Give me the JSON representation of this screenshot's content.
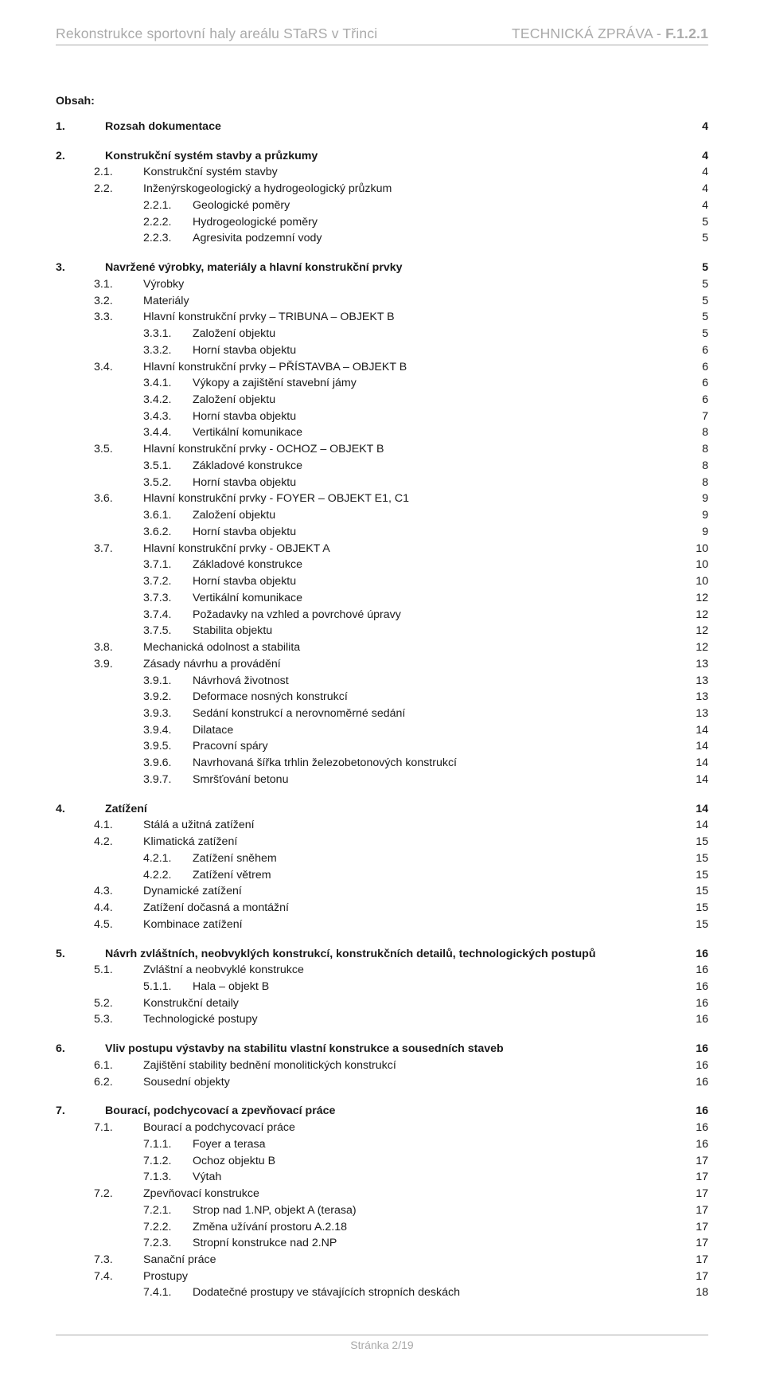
{
  "header": {
    "left": "Rekonstrukce sportovní haly areálu STaRS v Třinci",
    "right_label": "TECHNICKÁ ZPRÁVA - ",
    "right_code": "F.1.2.1"
  },
  "obsah_label": "Obsah:",
  "footer": "Stránka 2/19",
  "colors": {
    "header_text": "#aaaaaa",
    "body_text": "#1a1a1a",
    "rule": "#aaaaaa",
    "background": "#ffffff"
  },
  "toc": [
    {
      "lvl": 1,
      "num": "1.",
      "text": "Rozsah dokumentace",
      "page": "4"
    },
    {
      "lvl": 1,
      "num": "2.",
      "text": "Konstrukční systém stavby a průzkumy",
      "page": "4"
    },
    {
      "lvl": 2,
      "num": "2.1.",
      "text": "Konstrukční systém stavby",
      "page": "4"
    },
    {
      "lvl": 2,
      "num": "2.2.",
      "text": "Inženýrskogeologický a hydrogeologický průzkum",
      "page": "4"
    },
    {
      "lvl": 3,
      "num": "2.2.1.",
      "text": "Geologické poměry",
      "page": "4"
    },
    {
      "lvl": 3,
      "num": "2.2.2.",
      "text": "Hydrogeologické poměry",
      "page": "5"
    },
    {
      "lvl": 3,
      "num": "2.2.3.",
      "text": "Agresivita podzemní vody",
      "page": "5"
    },
    {
      "lvl": 1,
      "num": "3.",
      "text": "Navržené výrobky, materiály a hlavní konstrukční prvky",
      "page": "5"
    },
    {
      "lvl": 2,
      "num": "3.1.",
      "text": "Výrobky",
      "page": "5"
    },
    {
      "lvl": 2,
      "num": "3.2.",
      "text": "Materiály",
      "page": "5"
    },
    {
      "lvl": 2,
      "num": "3.3.",
      "text": "Hlavní konstrukční prvky – TRIBUNA – OBJEKT B",
      "page": "5"
    },
    {
      "lvl": 3,
      "num": "3.3.1.",
      "text": "Založení objektu",
      "page": "5"
    },
    {
      "lvl": 3,
      "num": "3.3.2.",
      "text": "Horní stavba objektu",
      "page": "6"
    },
    {
      "lvl": 2,
      "num": "3.4.",
      "text": "Hlavní konstrukční prvky –  PŘÍSTAVBA –  OBJEKT B",
      "page": "6"
    },
    {
      "lvl": 3,
      "num": "3.4.1.",
      "text": "Výkopy a zajištění stavební jámy",
      "page": "6"
    },
    {
      "lvl": 3,
      "num": "3.4.2.",
      "text": "Založení objektu",
      "page": "6"
    },
    {
      "lvl": 3,
      "num": "3.4.3.",
      "text": "Horní stavba objektu",
      "page": "7"
    },
    {
      "lvl": 3,
      "num": "3.4.4.",
      "text": "Vertikální komunikace",
      "page": "8"
    },
    {
      "lvl": 2,
      "num": "3.5.",
      "text": "Hlavní konstrukční prvky - OCHOZ –  OBJEKT B",
      "page": "8"
    },
    {
      "lvl": 3,
      "num": "3.5.1.",
      "text": "Základové konstrukce",
      "page": "8"
    },
    {
      "lvl": 3,
      "num": "3.5.2.",
      "text": "Horní stavba objektu",
      "page": "8"
    },
    {
      "lvl": 2,
      "num": "3.6.",
      "text": "Hlavní konstrukční prvky - FOYER –  OBJEKT E1, C1",
      "page": "9"
    },
    {
      "lvl": 3,
      "num": "3.6.1.",
      "text": "Založení objektu",
      "page": "9"
    },
    {
      "lvl": 3,
      "num": "3.6.2.",
      "text": "Horní stavba objektu",
      "page": "9"
    },
    {
      "lvl": 2,
      "num": "3.7.",
      "text": "Hlavní konstrukční prvky  - OBJEKT A",
      "page": "10"
    },
    {
      "lvl": 3,
      "num": "3.7.1.",
      "text": "Základové konstrukce",
      "page": "10"
    },
    {
      "lvl": 3,
      "num": "3.7.2.",
      "text": "Horní stavba objektu",
      "page": "10"
    },
    {
      "lvl": 3,
      "num": "3.7.3.",
      "text": "Vertikální komunikace",
      "page": "12"
    },
    {
      "lvl": 3,
      "num": "3.7.4.",
      "text": "Požadavky na vzhled a povrchové úpravy",
      "page": "12"
    },
    {
      "lvl": 3,
      "num": "3.7.5.",
      "text": "Stabilita objektu",
      "page": "12"
    },
    {
      "lvl": 2,
      "num": "3.8.",
      "text": "Mechanická odolnost a stabilita",
      "page": "12"
    },
    {
      "lvl": 2,
      "num": "3.9.",
      "text": "Zásady návrhu a provádění",
      "page": "13"
    },
    {
      "lvl": 3,
      "num": "3.9.1.",
      "text": "Návrhová životnost",
      "page": "13"
    },
    {
      "lvl": 3,
      "num": "3.9.2.",
      "text": "Deformace nosných konstrukcí",
      "page": "13"
    },
    {
      "lvl": 3,
      "num": "3.9.3.",
      "text": "Sedání konstrukcí a nerovnoměrné sedání",
      "page": "13"
    },
    {
      "lvl": 3,
      "num": "3.9.4.",
      "text": "Dilatace",
      "page": "14"
    },
    {
      "lvl": 3,
      "num": "3.9.5.",
      "text": "Pracovní spáry",
      "page": "14"
    },
    {
      "lvl": 3,
      "num": "3.9.6.",
      "text": "Navrhovaná šířka trhlin železobetonových konstrukcí",
      "page": "14"
    },
    {
      "lvl": 3,
      "num": "3.9.7.",
      "text": "Smršťování betonu",
      "page": "14"
    },
    {
      "lvl": 1,
      "num": "4.",
      "text": "Zatížení",
      "page": "14"
    },
    {
      "lvl": 2,
      "num": "4.1.",
      "text": "Stálá a užitná zatížení",
      "page": "14"
    },
    {
      "lvl": 2,
      "num": "4.2.",
      "text": "Klimatická zatížení",
      "page": "15"
    },
    {
      "lvl": 3,
      "num": "4.2.1.",
      "text": "Zatížení sněhem",
      "page": "15"
    },
    {
      "lvl": 3,
      "num": "4.2.2.",
      "text": "Zatížení větrem",
      "page": "15"
    },
    {
      "lvl": 2,
      "num": "4.3.",
      "text": "Dynamické zatížení",
      "page": "15"
    },
    {
      "lvl": 2,
      "num": "4.4.",
      "text": "Zatížení dočasná a montážní",
      "page": "15"
    },
    {
      "lvl": 2,
      "num": "4.5.",
      "text": "Kombinace zatížení",
      "page": "15"
    },
    {
      "lvl": 1,
      "num": "5.",
      "text": "Návrh zvláštních, neobvyklých konstrukcí, konstrukčních detailů, technologických postupů",
      "page": "16"
    },
    {
      "lvl": 2,
      "num": "5.1.",
      "text": "Zvláštní a neobvyklé konstrukce",
      "page": "16"
    },
    {
      "lvl": 3,
      "num": "5.1.1.",
      "text": "Hala – objekt B",
      "page": "16"
    },
    {
      "lvl": 2,
      "num": "5.2.",
      "text": "Konstrukční detaily",
      "page": "16"
    },
    {
      "lvl": 2,
      "num": "5.3.",
      "text": "Technologické postupy",
      "page": "16"
    },
    {
      "lvl": 1,
      "num": "6.",
      "text": "Vliv postupu výstavby na stabilitu vlastní konstrukce a sousedních staveb",
      "page": "16"
    },
    {
      "lvl": 2,
      "num": "6.1.",
      "text": "Zajištění stability bednění monolitických konstrukcí",
      "page": "16"
    },
    {
      "lvl": 2,
      "num": "6.2.",
      "text": "Sousední objekty",
      "page": "16"
    },
    {
      "lvl": 1,
      "num": "7.",
      "text": "Bourací, podchycovací a zpevňovací práce",
      "page": "16"
    },
    {
      "lvl": 2,
      "num": "7.1.",
      "text": "Bourací a podchycovací práce",
      "page": "16"
    },
    {
      "lvl": 3,
      "num": "7.1.1.",
      "text": "Foyer a terasa",
      "page": "16"
    },
    {
      "lvl": 3,
      "num": "7.1.2.",
      "text": "Ochoz objektu B",
      "page": "17"
    },
    {
      "lvl": 3,
      "num": "7.1.3.",
      "text": "Výtah",
      "page": "17"
    },
    {
      "lvl": 2,
      "num": "7.2.",
      "text": "Zpevňovací konstrukce",
      "page": "17"
    },
    {
      "lvl": 3,
      "num": "7.2.1.",
      "text": "Strop nad 1.NP, objekt A (terasa)",
      "page": "17"
    },
    {
      "lvl": 3,
      "num": "7.2.2.",
      "text": "Změna užívání prostoru A.2.18",
      "page": "17"
    },
    {
      "lvl": 3,
      "num": "7.2.3.",
      "text": "Stropní konstrukce nad 2.NP",
      "page": "17"
    },
    {
      "lvl": 2,
      "num": "7.3.",
      "text": "Sanační práce",
      "page": "17"
    },
    {
      "lvl": 2,
      "num": "7.4.",
      "text": "Prostupy",
      "page": "17"
    },
    {
      "lvl": 3,
      "num": "7.4.1.",
      "text": "Dodatečné prostupy ve stávajících stropních deskách",
      "page": "18"
    }
  ]
}
